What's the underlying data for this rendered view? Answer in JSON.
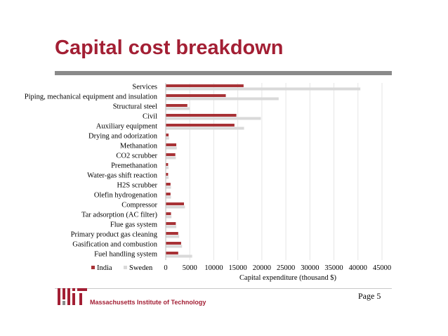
{
  "slide": {
    "title": "Capital cost breakdown",
    "page_number": "Page 5"
  },
  "logo": {
    "text": "Massachusetts Institute of Technology"
  },
  "colors": {
    "title": "#a31f34",
    "india": "#a83236",
    "sweden": "#d9d9d9",
    "rule": "#8a8a8a"
  },
  "chart_data": {
    "type": "bar",
    "orientation": "horizontal",
    "categories": [
      "Services",
      "Piping, mechanical equipment and insulation",
      "Structural steel",
      "Civil",
      "Auxiliary equipment",
      "Drying and odorization",
      "Methanation",
      "CO2 scrubber",
      "Premethanation",
      "Water-gas shift reaction",
      "H2S scrubber",
      "Olefin hydrogenation",
      "Compressor",
      "Tar adsorption (AC filter)",
      "Flue gas system",
      "Primary product gas cleaning",
      "Gasification and combustion",
      "Fuel handling system"
    ],
    "series": [
      {
        "name": "India",
        "values": [
          16200,
          12500,
          4500,
          14700,
          14300,
          600,
          2200,
          2000,
          500,
          500,
          1000,
          1000,
          3800,
          1100,
          2100,
          2600,
          3200,
          2600
        ]
      },
      {
        "name": "Sweden",
        "values": [
          40500,
          23500,
          5000,
          19800,
          16300,
          700,
          2300,
          2100,
          600,
          600,
          1100,
          1100,
          4000,
          1200,
          2200,
          2800,
          3400,
          5500
        ]
      }
    ],
    "xlabel": "Capital expenditure (thousand $)",
    "xlim": [
      0,
      45000
    ],
    "xticks": [
      0,
      5000,
      10000,
      15000,
      20000,
      25000,
      30000,
      35000,
      40000,
      45000
    ],
    "grid": true,
    "legend": "bottom-left"
  }
}
